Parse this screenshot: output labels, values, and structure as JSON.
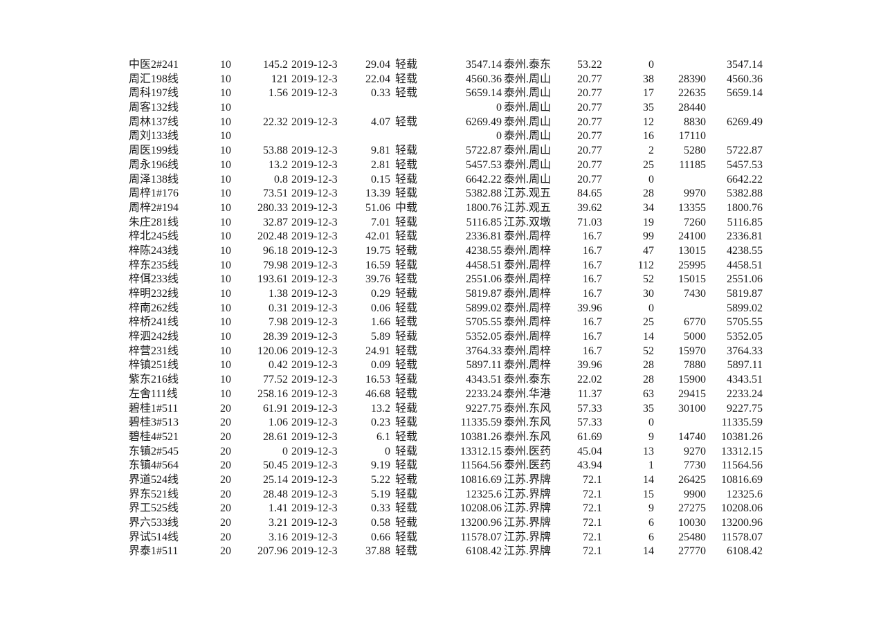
{
  "colors": {
    "text": "#1a1a1a",
    "background": "#ffffff"
  },
  "table": {
    "load_levels_visible": [
      "轻载",
      "中载"
    ],
    "rows": [
      [
        "中医2#241",
        "10",
        "145.2",
        "2019-12-3",
        "29.04",
        "轻载",
        "3547.14",
        "泰州.泰东",
        "53.22",
        "0",
        "",
        "3547.14"
      ],
      [
        "周汇198线",
        "10",
        "121",
        "2019-12-3",
        "22.04",
        "轻载",
        "4560.36",
        "泰州.周山",
        "20.77",
        "38",
        "28390",
        "4560.36"
      ],
      [
        "周科197线",
        "10",
        "1.56",
        "2019-12-3",
        "0.33",
        "轻载",
        "5659.14",
        "泰州.周山",
        "20.77",
        "17",
        "22635",
        "5659.14"
      ],
      [
        "周客132线",
        "10",
        "",
        "",
        "",
        "",
        "0",
        "泰州.周山",
        "20.77",
        "35",
        "28440",
        ""
      ],
      [
        "周林137线",
        "10",
        "22.32",
        "2019-12-3",
        "4.07",
        "轻载",
        "6269.49",
        "泰州.周山",
        "20.77",
        "12",
        "8830",
        "6269.49"
      ],
      [
        "周刘133线",
        "10",
        "",
        "",
        "",
        "",
        "0",
        "泰州.周山",
        "20.77",
        "16",
        "17110",
        ""
      ],
      [
        "周医199线",
        "10",
        "53.88",
        "2019-12-3",
        "9.81",
        "轻载",
        "5722.87",
        "泰州.周山",
        "20.77",
        "2",
        "5280",
        "5722.87"
      ],
      [
        "周永196线",
        "10",
        "13.2",
        "2019-12-3",
        "2.81",
        "轻载",
        "5457.53",
        "泰州.周山",
        "20.77",
        "25",
        "11185",
        "5457.53"
      ],
      [
        "周泽138线",
        "10",
        "0.8",
        "2019-12-3",
        "0.15",
        "轻载",
        "6642.22",
        "泰州.周山",
        "20.77",
        "0",
        "",
        "6642.22"
      ],
      [
        "周梓1#176",
        "10",
        "73.51",
        "2019-12-3",
        "13.39",
        "轻载",
        "5382.88",
        "江苏.观五",
        "84.65",
        "28",
        "9970",
        "5382.88"
      ],
      [
        "周梓2#194",
        "10",
        "280.33",
        "2019-12-3",
        "51.06",
        "中载",
        "1800.76",
        "江苏.观五",
        "39.62",
        "34",
        "13355",
        "1800.76"
      ],
      [
        "朱庄281线",
        "10",
        "32.87",
        "2019-12-3",
        "7.01",
        "轻载",
        "5116.85",
        "江苏.双墩",
        "71.03",
        "19",
        "7260",
        "5116.85"
      ],
      [
        "梓北245线",
        "10",
        "202.48",
        "2019-12-3",
        "42.01",
        "轻载",
        "2336.81",
        "泰州.周梓",
        "16.7",
        "99",
        "24100",
        "2336.81"
      ],
      [
        "梓陈243线",
        "10",
        "96.18",
        "2019-12-3",
        "19.75",
        "轻载",
        "4238.55",
        "泰州.周梓",
        "16.7",
        "47",
        "13015",
        "4238.55"
      ],
      [
        "梓东235线",
        "10",
        "79.98",
        "2019-12-3",
        "16.59",
        "轻载",
        "4458.51",
        "泰州.周梓",
        "16.7",
        "112",
        "25995",
        "4458.51"
      ],
      [
        "梓佴233线",
        "10",
        "193.61",
        "2019-12-3",
        "39.76",
        "轻载",
        "2551.06",
        "泰州.周梓",
        "16.7",
        "52",
        "15015",
        "2551.06"
      ],
      [
        "梓明232线",
        "10",
        "1.38",
        "2019-12-3",
        "0.29",
        "轻载",
        "5819.87",
        "泰州.周梓",
        "16.7",
        "30",
        "7430",
        "5819.87"
      ],
      [
        "梓南262线",
        "10",
        "0.31",
        "2019-12-3",
        "0.06",
        "轻载",
        "5899.02",
        "泰州.周梓",
        "39.96",
        "0",
        "",
        "5899.02"
      ],
      [
        "梓桥241线",
        "10",
        "7.98",
        "2019-12-3",
        "1.66",
        "轻载",
        "5705.55",
        "泰州.周梓",
        "16.7",
        "25",
        "6770",
        "5705.55"
      ],
      [
        "梓泗242线",
        "10",
        "28.39",
        "2019-12-3",
        "5.89",
        "轻载",
        "5352.05",
        "泰州.周梓",
        "16.7",
        "14",
        "5000",
        "5352.05"
      ],
      [
        "梓营231线",
        "10",
        "120.06",
        "2019-12-3",
        "24.91",
        "轻载",
        "3764.33",
        "泰州.周梓",
        "16.7",
        "52",
        "15970",
        "3764.33"
      ],
      [
        "梓镇251线",
        "10",
        "0.42",
        "2019-12-3",
        "0.09",
        "轻载",
        "5897.11",
        "泰州.周梓",
        "39.96",
        "28",
        "7880",
        "5897.11"
      ],
      [
        "紫东216线",
        "10",
        "77.52",
        "2019-12-3",
        "16.53",
        "轻载",
        "4343.51",
        "泰州.泰东",
        "22.02",
        "28",
        "15900",
        "4343.51"
      ],
      [
        "左舍111线",
        "10",
        "258.16",
        "2019-12-3",
        "46.68",
        "轻载",
        "2233.24",
        "泰州.华港",
        "11.37",
        "63",
        "29415",
        "2233.24"
      ],
      [
        "碧桂1#511",
        "20",
        "61.91",
        "2019-12-3",
        "13.2",
        "轻载",
        "9227.75",
        "泰州.东风",
        "57.33",
        "35",
        "30100",
        "9227.75"
      ],
      [
        "碧桂3#513",
        "20",
        "1.06",
        "2019-12-3",
        "0.23",
        "轻载",
        "11335.59",
        "泰州.东风",
        "57.33",
        "0",
        "",
        "11335.59"
      ],
      [
        "碧桂4#521",
        "20",
        "28.61",
        "2019-12-3",
        "6.1",
        "轻载",
        "10381.26",
        "泰州.东风",
        "61.69",
        "9",
        "14740",
        "10381.26"
      ],
      [
        "东镇2#545",
        "20",
        "0",
        "2019-12-3",
        "0",
        "轻载",
        "13312.15",
        "泰州.医药",
        "45.04",
        "13",
        "9270",
        "13312.15"
      ],
      [
        "东镇4#564",
        "20",
        "50.45",
        "2019-12-3",
        "9.19",
        "轻载",
        "11564.56",
        "泰州.医药",
        "43.94",
        "1",
        "7730",
        "11564.56"
      ],
      [
        "界道524线",
        "20",
        "25.14",
        "2019-12-3",
        "5.22",
        "轻载",
        "10816.69",
        "江苏.界牌",
        "72.1",
        "14",
        "26425",
        "10816.69"
      ],
      [
        "界东521线",
        "20",
        "28.48",
        "2019-12-3",
        "5.19",
        "轻载",
        "12325.6",
        "江苏.界牌",
        "72.1",
        "15",
        "9900",
        "12325.6"
      ],
      [
        "界工525线",
        "20",
        "1.41",
        "2019-12-3",
        "0.33",
        "轻载",
        "10208.06",
        "江苏.界牌",
        "72.1",
        "9",
        "27275",
        "10208.06"
      ],
      [
        "界六533线",
        "20",
        "3.21",
        "2019-12-3",
        "0.58",
        "轻载",
        "13200.96",
        "江苏.界牌",
        "72.1",
        "6",
        "10030",
        "13200.96"
      ],
      [
        "界试514线",
        "20",
        "3.16",
        "2019-12-3",
        "0.66",
        "轻载",
        "11578.07",
        "江苏.界牌",
        "72.1",
        "6",
        "25480",
        "11578.07"
      ],
      [
        "界泰1#511",
        "20",
        "207.96",
        "2019-12-3",
        "37.88",
        "轻载",
        "6108.42",
        "江苏.界牌",
        "72.1",
        "14",
        "27770",
        "6108.42"
      ]
    ]
  }
}
